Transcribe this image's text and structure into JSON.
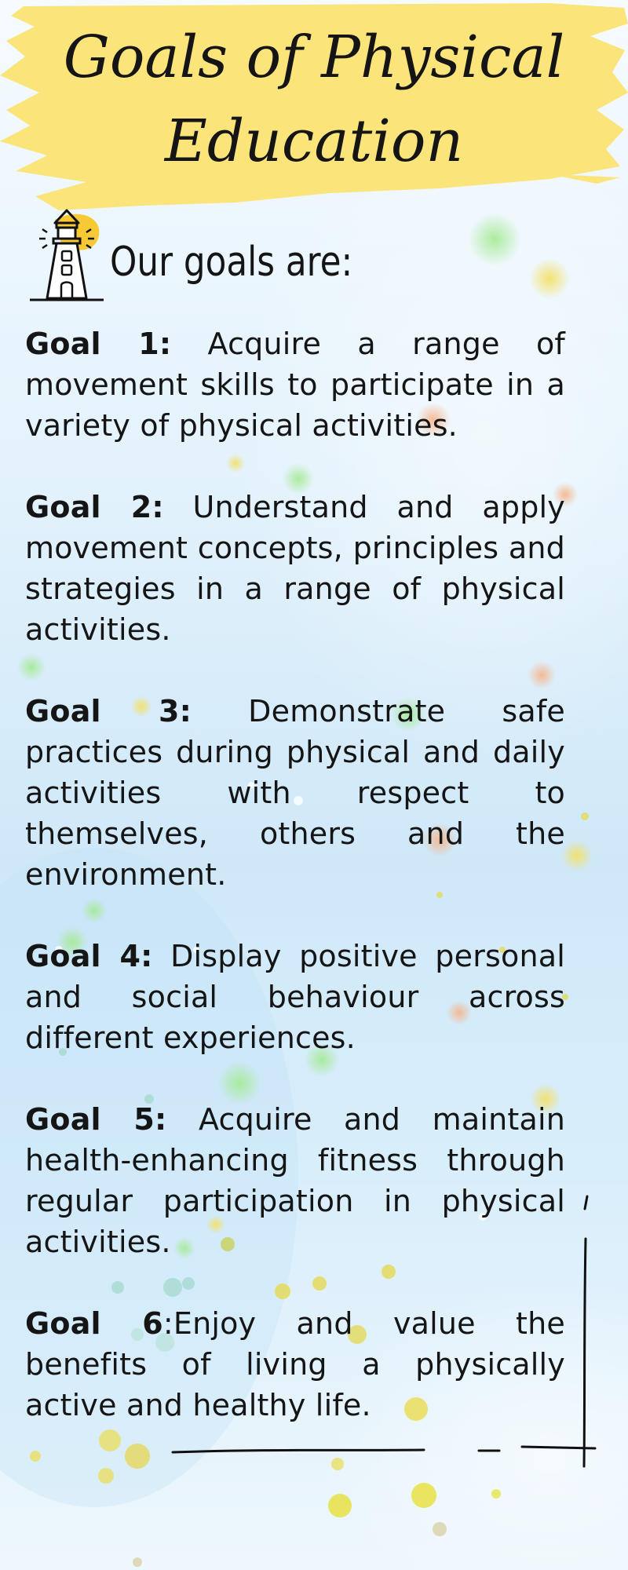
{
  "title": {
    "line1": "Goals of Physical",
    "line2": "Education"
  },
  "subheading": "Our goals are:",
  "icons": {
    "header": "lighthouse-icon"
  },
  "goals": [
    {
      "label": "Goal 1:",
      "text": " Acquire a range of movement skills to participate in a variety of physical activities."
    },
    {
      "label": "Goal 2:",
      "text": " Understand and apply movement concepts, principles and strategies in a range of physical activities."
    },
    {
      "label": "Goal 3:",
      "text": " Demonstrate safe practices during physical and daily activities with respect to themselves, others and the environment."
    },
    {
      "label": "Goal 4:",
      "text": " Display positive personal and social behaviour across different experiences."
    },
    {
      "label": "Goal 5:",
      "text": " Acquire and maintain health-enhancing fitness through regular participation in physical activities."
    },
    {
      "label": "Goal 6",
      "text": ":Enjoy and value the benefits of living a physically active and healthy life."
    }
  ],
  "colors": {
    "banner": "#fbe47a",
    "text": "#151515",
    "background": "#d9eefb",
    "bokeh_yellow": "#f1dc5a",
    "bokeh_green": "#9be38f"
  }
}
